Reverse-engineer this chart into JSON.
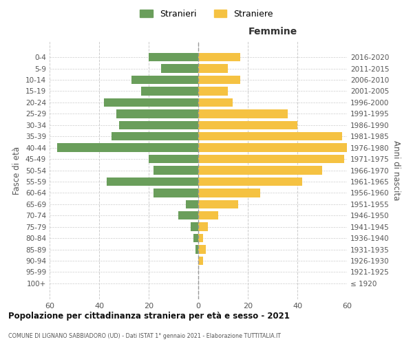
{
  "age_groups": [
    "100+",
    "95-99",
    "90-94",
    "85-89",
    "80-84",
    "75-79",
    "70-74",
    "65-69",
    "60-64",
    "55-59",
    "50-54",
    "45-49",
    "40-44",
    "35-39",
    "30-34",
    "25-29",
    "20-24",
    "15-19",
    "10-14",
    "5-9",
    "0-4"
  ],
  "birth_years": [
    "≤ 1920",
    "1921-1925",
    "1926-1930",
    "1931-1935",
    "1936-1940",
    "1941-1945",
    "1946-1950",
    "1951-1955",
    "1956-1960",
    "1961-1965",
    "1966-1970",
    "1971-1975",
    "1976-1980",
    "1981-1985",
    "1986-1990",
    "1991-1995",
    "1996-2000",
    "2001-2005",
    "2006-2010",
    "2011-2015",
    "2016-2020"
  ],
  "males": [
    0,
    0,
    0,
    1,
    2,
    3,
    8,
    5,
    18,
    37,
    18,
    20,
    57,
    35,
    32,
    33,
    38,
    23,
    27,
    15,
    20
  ],
  "females": [
    0,
    0,
    2,
    3,
    2,
    4,
    8,
    16,
    25,
    42,
    50,
    59,
    60,
    58,
    40,
    36,
    14,
    12,
    17,
    12,
    17
  ],
  "male_color": "#6a9e5b",
  "female_color": "#f5c242",
  "background_color": "#ffffff",
  "grid_color": "#cccccc",
  "title": "Popolazione per cittadinanza straniera per età e sesso - 2021",
  "subtitle": "COMUNE DI LIGNANO SABBIADORO (UD) - Dati ISTAT 1° gennaio 2021 - Elaborazione TUTTITALIA.IT",
  "right_label": "Femmine",
  "y_left_label": "Fasce di età",
  "y_right_label": "Anni di nascita",
  "xlim": 60,
  "legend_labels": [
    "Stranieri",
    "Straniere"
  ],
  "legend_colors": [
    "#6a9e5b",
    "#f5c242"
  ]
}
